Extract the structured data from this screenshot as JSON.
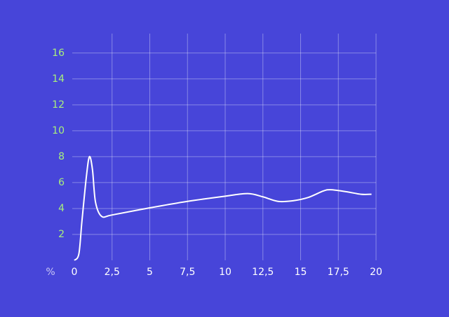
{
  "chart_data": {
    "type": "line",
    "y_label": "%",
    "x": [
      0,
      0.3,
      0.5,
      0.8,
      1.0,
      1.2,
      1.4,
      1.8,
      2.5,
      5,
      7.5,
      10,
      11.5,
      12.5,
      13.5,
      14.5,
      15.5,
      16.5,
      17,
      18,
      19,
      19.7
    ],
    "values": [
      0,
      0.5,
      3,
      6.5,
      8,
      7,
      4.5,
      3.4,
      3.5,
      4.05,
      4.55,
      4.95,
      5.15,
      4.9,
      4.55,
      4.6,
      4.85,
      5.35,
      5.45,
      5.3,
      5.1,
      5.1
    ],
    "color": "#ffffff",
    "xlim": [
      0,
      20
    ],
    "xticks": [
      0,
      {
        "value": 2.5,
        "label": "2,5"
      },
      5,
      {
        "value": 7.5,
        "label": "7,5"
      },
      10,
      {
        "value": 12.5,
        "label": "12,5"
      },
      15,
      {
        "value": 17.5,
        "label": "17,5"
      },
      20
    ],
    "ylim": [
      0,
      17.5
    ],
    "yticks": [
      2,
      4,
      6,
      8,
      10,
      12,
      14,
      16
    ],
    "grid": true
  }
}
